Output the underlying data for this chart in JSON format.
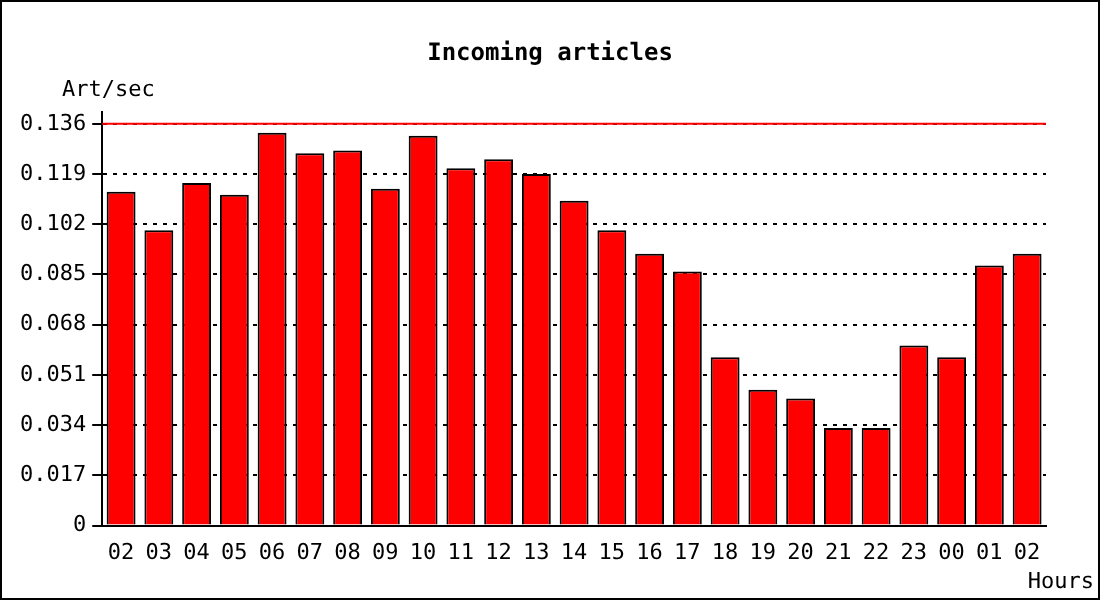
{
  "chart_data": {
    "type": "bar",
    "title": "Incoming articles",
    "ylabel": "Art/sec",
    "xlabel": "Hours",
    "categories": [
      "02",
      "03",
      "04",
      "05",
      "06",
      "07",
      "08",
      "09",
      "10",
      "11",
      "12",
      "13",
      "14",
      "15",
      "16",
      "17",
      "18",
      "19",
      "20",
      "21",
      "22",
      "23",
      "00",
      "01",
      "02"
    ],
    "values": [
      0.113,
      0.1,
      0.116,
      0.112,
      0.133,
      0.126,
      0.127,
      0.114,
      0.132,
      0.121,
      0.124,
      0.119,
      0.11,
      0.1,
      0.092,
      0.086,
      0.057,
      0.046,
      0.043,
      0.033,
      0.033,
      0.061,
      0.057,
      0.088,
      0.092
    ],
    "color": "#ff0000",
    "ylim": [
      0,
      0.14
    ],
    "yticks": [
      0,
      0.017,
      0.034,
      0.051,
      0.068,
      0.085,
      0.102,
      0.119,
      0.136
    ],
    "grid": "y",
    "legend": false,
    "ref_lines": [
      {
        "axis": "y",
        "value": 0.136,
        "color": "#ff0000",
        "line_style": "solid"
      }
    ]
  }
}
